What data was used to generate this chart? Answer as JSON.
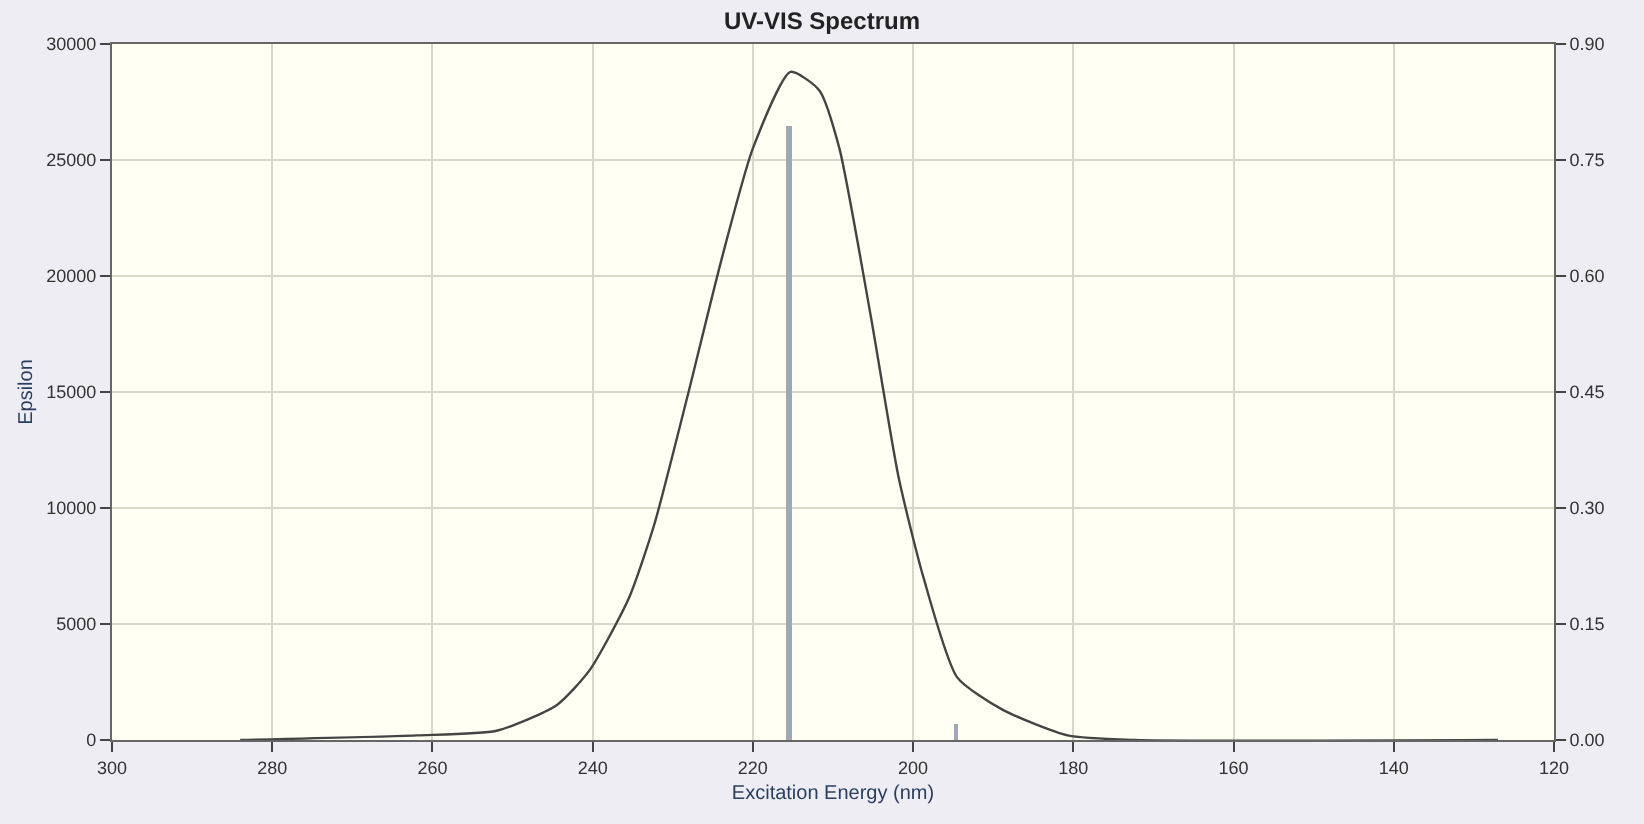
{
  "chart_data": {
    "type": "line",
    "title": "UV-VIS Spectrum",
    "xlabel": "Excitation Energy (nm)",
    "ylabel": "Epsilon",
    "xlim": [
      300,
      120
    ],
    "xticks": [
      300,
      280,
      260,
      240,
      220,
      200,
      180,
      160,
      140,
      120
    ],
    "ylim": [
      0,
      30000
    ],
    "yticks": [
      0,
      5000,
      10000,
      15000,
      20000,
      25000,
      30000
    ],
    "y2lim": [
      0,
      0.9
    ],
    "y2ticks": [
      {
        "value": 0,
        "label": "0.00"
      },
      0.15,
      {
        "value": 0.3,
        "label": "0.30"
      },
      0.45,
      {
        "value": 0.6,
        "label": "0.60"
      },
      0.75,
      {
        "value": 0.9,
        "label": "0.90"
      }
    ],
    "grid": true,
    "series": [
      {
        "color": "#444444",
        "x": [
          284,
          262,
          252,
          244.5,
          240.4,
          235.5,
          232.3,
          228.1,
          224,
          220,
          215.3,
          211.7,
          209.2,
          205.3,
          201.8,
          198.7,
          194.5,
          188.8,
          180.7,
          172.4,
          127
        ],
        "values": [
          0,
          200,
          400,
          1500,
          3000,
          6100,
          9300,
          14900,
          20600,
          25500,
          28800,
          28000,
          25500,
          18300,
          11300,
          7000,
          2700,
          1300,
          200,
          0,
          0
        ]
      },
      {
        "type": "bar",
        "axis": "y2",
        "color": "#a0a8b8",
        "x": [
          215.5,
          194.7
        ],
        "values": [
          0.795,
          0.02
        ]
      }
    ]
  }
}
